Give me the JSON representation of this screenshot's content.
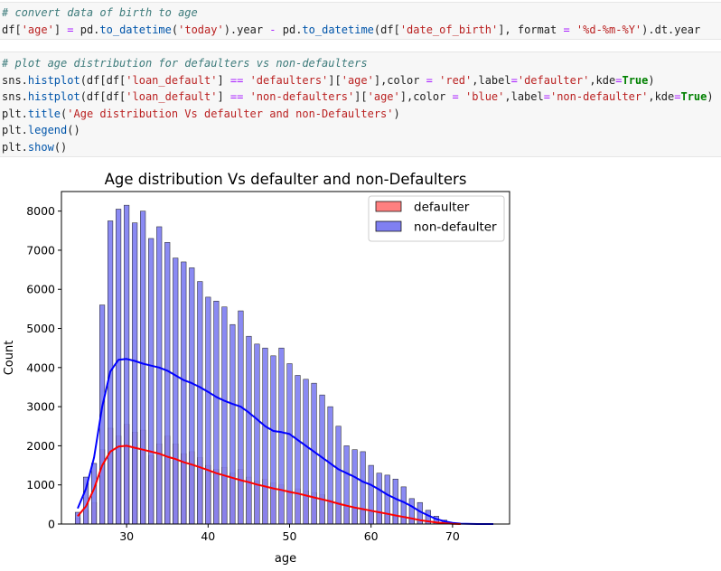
{
  "cell1": {
    "line1": "# convert data of birth to age",
    "line2_parts": [
      "df[",
      "'age'",
      "] ",
      "=",
      " pd.",
      "to_datetime",
      "(",
      "'today'",
      ").year ",
      "-",
      " pd.",
      "to_datetime",
      "(df[",
      "'date_of_birth'",
      "], format ",
      "=",
      " ",
      "'%d-%m-%Y'",
      ").dt.year"
    ]
  },
  "cell2": {
    "line1": "# plot age distribution for defaulters vs non-defaulters",
    "line2_parts": [
      "sns.",
      "histplot",
      "(df[df[",
      "'loan_default'",
      "] ",
      "==",
      " ",
      "'defaulters'",
      "][",
      "'age'",
      "],color ",
      "=",
      " ",
      "'red'",
      ",label",
      "=",
      "'defaulter'",
      ",kde",
      "=",
      "True",
      ")"
    ],
    "line3_parts": [
      "sns.",
      "histplot",
      "(df[df[",
      "'loan_default'",
      "] ",
      "==",
      " ",
      "'non-defaulters'",
      "][",
      "'age'",
      "],color ",
      "=",
      " ",
      "'blue'",
      ",label",
      "=",
      "'non-defaulter'",
      ",kde",
      "=",
      "True",
      ")"
    ],
    "line4_parts": [
      "plt.",
      "title",
      "(",
      "'Age distribution Vs defaulter and non-Defaulters'",
      ")"
    ],
    "line5_parts": [
      "plt.",
      "legend",
      "()"
    ],
    "line6_parts": [
      "plt.",
      "show",
      "()"
    ]
  },
  "colors": {
    "defaulter_fill": "#ff8080",
    "non_defaulter_fill": "#8080f2",
    "defaulter_kde": "#ff0000",
    "non_defaulter_kde": "#0000ff"
  },
  "chart_data": {
    "type": "bar",
    "title": "Age distribution Vs defaulter and non-Defaulters",
    "xlabel": "age",
    "ylabel": "Count",
    "xlim": [
      22,
      77
    ],
    "ylim": [
      0,
      8500
    ],
    "xticks": [
      30,
      40,
      50,
      60,
      70
    ],
    "yticks": [
      0,
      1000,
      2000,
      3000,
      4000,
      5000,
      6000,
      7000,
      8000
    ],
    "legend_position": "top-right",
    "grid": false,
    "series": [
      {
        "name": "defaulter",
        "color": "#ff0000",
        "bins": [
          [
            24,
            150
          ],
          [
            25,
            350
          ],
          [
            26,
            550
          ],
          [
            27,
            1900
          ],
          [
            28,
            2450
          ],
          [
            29,
            2250
          ],
          [
            30,
            2550
          ],
          [
            31,
            2350
          ],
          [
            32,
            2400
          ],
          [
            33,
            1750
          ],
          [
            34,
            2050
          ],
          [
            35,
            2250
          ],
          [
            36,
            2050
          ],
          [
            37,
            1800
          ],
          [
            38,
            1850
          ],
          [
            39,
            1700
          ],
          [
            40,
            1500
          ],
          [
            41,
            1400
          ],
          [
            42,
            1450
          ],
          [
            43,
            1300
          ],
          [
            44,
            1400
          ],
          [
            45,
            1200
          ],
          [
            46,
            1100
          ],
          [
            47,
            1150
          ],
          [
            48,
            1050
          ],
          [
            49,
            1000
          ],
          [
            50,
            850
          ],
          [
            51,
            900
          ],
          [
            52,
            850
          ],
          [
            53,
            800
          ],
          [
            54,
            750
          ],
          [
            55,
            600
          ],
          [
            56,
            550
          ],
          [
            57,
            450
          ],
          [
            58,
            400
          ],
          [
            59,
            350
          ],
          [
            60,
            300
          ],
          [
            61,
            300
          ],
          [
            62,
            250
          ],
          [
            63,
            220
          ],
          [
            64,
            200
          ],
          [
            65,
            150
          ],
          [
            66,
            110
          ],
          [
            67,
            80
          ],
          [
            68,
            40
          ],
          [
            69,
            20
          ]
        ],
        "kde": [
          [
            24,
            200
          ],
          [
            25,
            450
          ],
          [
            26,
            900
          ],
          [
            27,
            1500
          ],
          [
            28,
            1850
          ],
          [
            29,
            1980
          ],
          [
            30,
            2000
          ],
          [
            31,
            1950
          ],
          [
            32,
            1900
          ],
          [
            33,
            1850
          ],
          [
            34,
            1800
          ],
          [
            35,
            1720
          ],
          [
            36,
            1660
          ],
          [
            37,
            1580
          ],
          [
            38,
            1520
          ],
          [
            39,
            1450
          ],
          [
            40,
            1380
          ],
          [
            41,
            1300
          ],
          [
            42,
            1240
          ],
          [
            43,
            1180
          ],
          [
            44,
            1120
          ],
          [
            45,
            1070
          ],
          [
            46,
            1010
          ],
          [
            47,
            960
          ],
          [
            48,
            910
          ],
          [
            49,
            870
          ],
          [
            50,
            820
          ],
          [
            51,
            780
          ],
          [
            52,
            730
          ],
          [
            53,
            680
          ],
          [
            54,
            630
          ],
          [
            55,
            580
          ],
          [
            56,
            520
          ],
          [
            57,
            470
          ],
          [
            58,
            420
          ],
          [
            59,
            380
          ],
          [
            60,
            340
          ],
          [
            61,
            300
          ],
          [
            62,
            260
          ],
          [
            63,
            220
          ],
          [
            64,
            180
          ],
          [
            65,
            140
          ],
          [
            66,
            100
          ],
          [
            67,
            70
          ],
          [
            68,
            40
          ],
          [
            69,
            20
          ],
          [
            70,
            8
          ],
          [
            71,
            0
          ]
        ]
      },
      {
        "name": "non-defaulter",
        "color": "#0000ff",
        "bins": [
          [
            24,
            300
          ],
          [
            25,
            1200
          ],
          [
            26,
            1550
          ],
          [
            27,
            5600
          ],
          [
            28,
            7750
          ],
          [
            29,
            8050
          ],
          [
            30,
            8150
          ],
          [
            31,
            7700
          ],
          [
            32,
            8000
          ],
          [
            33,
            7300
          ],
          [
            34,
            7600
          ],
          [
            35,
            7200
          ],
          [
            36,
            6800
          ],
          [
            37,
            6700
          ],
          [
            38,
            6550
          ],
          [
            39,
            6200
          ],
          [
            40,
            5800
          ],
          [
            41,
            5700
          ],
          [
            42,
            5550
          ],
          [
            43,
            5100
          ],
          [
            44,
            5450
          ],
          [
            45,
            4800
          ],
          [
            46,
            4600
          ],
          [
            47,
            4500
          ],
          [
            48,
            4300
          ],
          [
            49,
            4500
          ],
          [
            50,
            4100
          ],
          [
            51,
            3800
          ],
          [
            52,
            3700
          ],
          [
            53,
            3600
          ],
          [
            54,
            3300
          ],
          [
            55,
            3000
          ],
          [
            56,
            2500
          ],
          [
            57,
            2000
          ],
          [
            58,
            1900
          ],
          [
            59,
            1850
          ],
          [
            60,
            1500
          ],
          [
            61,
            1300
          ],
          [
            62,
            1250
          ],
          [
            63,
            1150
          ],
          [
            64,
            950
          ],
          [
            65,
            650
          ],
          [
            66,
            550
          ],
          [
            67,
            350
          ],
          [
            68,
            200
          ],
          [
            69,
            100
          ]
        ],
        "kde": [
          [
            24,
            400
          ],
          [
            25,
            900
          ],
          [
            26,
            1700
          ],
          [
            27,
            3000
          ],
          [
            28,
            3900
          ],
          [
            29,
            4200
          ],
          [
            30,
            4220
          ],
          [
            31,
            4170
          ],
          [
            32,
            4100
          ],
          [
            33,
            4050
          ],
          [
            34,
            4000
          ],
          [
            35,
            3920
          ],
          [
            36,
            3800
          ],
          [
            37,
            3680
          ],
          [
            38,
            3600
          ],
          [
            39,
            3500
          ],
          [
            40,
            3380
          ],
          [
            41,
            3250
          ],
          [
            42,
            3150
          ],
          [
            43,
            3070
          ],
          [
            44,
            3000
          ],
          [
            45,
            2850
          ],
          [
            46,
            2680
          ],
          [
            47,
            2500
          ],
          [
            48,
            2380
          ],
          [
            49,
            2350
          ],
          [
            50,
            2300
          ],
          [
            51,
            2150
          ],
          [
            52,
            2000
          ],
          [
            53,
            1850
          ],
          [
            54,
            1700
          ],
          [
            55,
            1550
          ],
          [
            56,
            1400
          ],
          [
            57,
            1300
          ],
          [
            58,
            1200
          ],
          [
            59,
            1080
          ],
          [
            60,
            1000
          ],
          [
            61,
            880
          ],
          [
            62,
            750
          ],
          [
            63,
            650
          ],
          [
            64,
            560
          ],
          [
            65,
            450
          ],
          [
            66,
            320
          ],
          [
            67,
            220
          ],
          [
            68,
            130
          ],
          [
            69,
            70
          ],
          [
            70,
            30
          ],
          [
            71,
            10
          ],
          [
            73,
            0
          ],
          [
            75,
            0
          ]
        ]
      }
    ]
  }
}
